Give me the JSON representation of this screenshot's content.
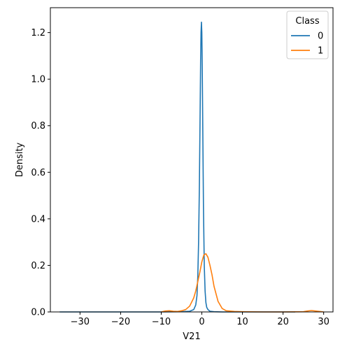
{
  "chart_data": {
    "type": "line",
    "title": "",
    "xlabel": "V21",
    "ylabel": "Density",
    "xlim": [
      -37.3,
      32.3
    ],
    "ylim": [
      0,
      1.307
    ],
    "xticks": [
      -30,
      -20,
      -10,
      0,
      10,
      20,
      30
    ],
    "xtick_labels": [
      "−30",
      "−20",
      "−10",
      "0",
      "10",
      "20",
      "30"
    ],
    "yticks": [
      0.0,
      0.2,
      0.4,
      0.6,
      0.8,
      1.0,
      1.2
    ],
    "ytick_labels": [
      "0.0",
      "0.2",
      "0.4",
      "0.6",
      "0.8",
      "1.0",
      "1.2"
    ],
    "grid": false,
    "legend": {
      "title": "Class",
      "placement": "top-right"
    },
    "series": [
      {
        "name": "0",
        "color": "#1f77b4",
        "x": [
          -35,
          -30,
          -20,
          -10,
          -5,
          -3,
          -2,
          -1.5,
          -1.2,
          -1.0,
          -0.8,
          -0.6,
          -0.4,
          -0.3,
          -0.2,
          -0.1,
          0.0,
          0.1,
          0.2,
          0.4,
          0.6,
          0.8,
          1.0,
          1.2,
          1.5,
          2,
          3,
          5,
          10,
          20,
          23
        ],
        "y": [
          0.0,
          0.0,
          0.0,
          0.0,
          0.001,
          0.003,
          0.01,
          0.03,
          0.07,
          0.15,
          0.3,
          0.55,
          0.9,
          1.08,
          1.2,
          1.245,
          1.2,
          1.05,
          0.85,
          0.45,
          0.2,
          0.09,
          0.04,
          0.02,
          0.01,
          0.003,
          0.001,
          0.0,
          0.0,
          0.0,
          0.0
        ]
      },
      {
        "name": "1",
        "color": "#ff7f0e",
        "x": [
          -10,
          -9,
          -8,
          -7,
          -6,
          -5,
          -4,
          -3,
          -2,
          -1.5,
          -1,
          -0.5,
          0,
          0.5,
          1,
          1.5,
          2,
          2.5,
          3,
          4,
          5,
          6,
          8,
          10,
          15,
          20,
          25,
          26,
          27,
          28,
          29,
          30
        ],
        "y": [
          0.0,
          0.004,
          0.005,
          0.003,
          0.002,
          0.005,
          0.01,
          0.025,
          0.06,
          0.09,
          0.13,
          0.17,
          0.215,
          0.245,
          0.25,
          0.235,
          0.2,
          0.16,
          0.11,
          0.045,
          0.015,
          0.005,
          0.002,
          0.001,
          0.0,
          0.0,
          0.001,
          0.004,
          0.006,
          0.004,
          0.002,
          0.0
        ]
      }
    ]
  }
}
